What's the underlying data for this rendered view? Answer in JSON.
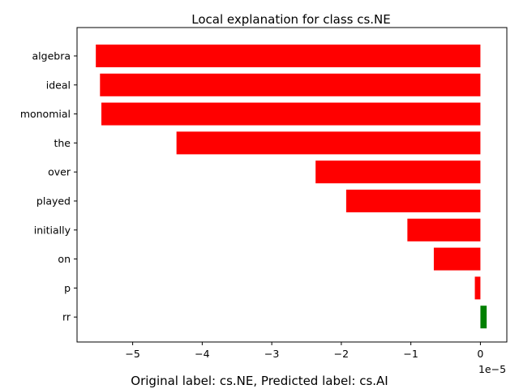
{
  "chart_data": {
    "type": "bar",
    "orientation": "horizontal",
    "title": "Local explanation for class cs.NE",
    "caption": "Original label: cs.NE, Predicted label: cs.AI",
    "x_scale_label": "1e−5",
    "categories": [
      "algebra",
      "ideal",
      "monomial",
      "the",
      "over",
      "played",
      "initially",
      "on",
      "p",
      "rr"
    ],
    "values": [
      -5.53,
      -5.47,
      -5.45,
      -4.37,
      -2.37,
      -1.93,
      -1.05,
      -0.67,
      -0.08,
      0.09
    ],
    "value_multiplier": "1e-5",
    "colors": [
      "#ff0000",
      "#ff0000",
      "#ff0000",
      "#ff0000",
      "#ff0000",
      "#ff0000",
      "#ff0000",
      "#ff0000",
      "#ff0000",
      "#008000"
    ],
    "xlim": [
      -5.8,
      0.38
    ],
    "xticks": [
      -5,
      -4,
      -3,
      -2,
      -1,
      0
    ],
    "xtick_labels": [
      "−5",
      "−4",
      "−3",
      "−2",
      "−1",
      "0"
    ],
    "grid": false,
    "negative_color": "#ff0000",
    "positive_color": "#008000"
  }
}
